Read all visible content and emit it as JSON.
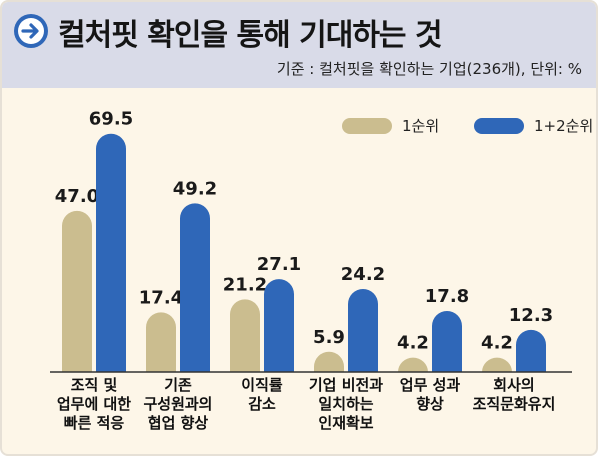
{
  "header": {
    "title": "컬처핏 확인을 통해 기대하는 것",
    "subtitle": "기준 : 컬처핏을 확인하는 기업(236개), 단위: %",
    "icon": "arrow-right-circle-icon"
  },
  "colors": {
    "series1": "#cbbd8f",
    "series2": "#2f67b8",
    "axis": "#333333"
  },
  "chart_data": {
    "type": "bar",
    "categories": [
      [
        "조직 및",
        "업무에 대한",
        "빠른 적응"
      ],
      [
        "기존",
        "구성원과의",
        "협업 향상"
      ],
      [
        "이직률",
        "감소"
      ],
      [
        "기업 비전과",
        "일치하는",
        "인재확보"
      ],
      [
        "업무 성과",
        "향상"
      ],
      [
        "회사의",
        "조직문화유지"
      ]
    ],
    "series": [
      {
        "name": "1순위",
        "values": [
          47.0,
          17.4,
          21.2,
          5.9,
          4.2,
          4.2
        ],
        "labels": [
          "47.0",
          "17.4",
          "21.2",
          "5.9",
          "4.2",
          "4.2"
        ]
      },
      {
        "name": "1+2순위",
        "values": [
          69.5,
          49.2,
          27.1,
          24.2,
          17.8,
          12.3
        ],
        "labels": [
          "69.5",
          "49.2",
          "27.1",
          "24.2",
          "17.8",
          "12.3"
        ]
      }
    ],
    "ylim": [
      0,
      70
    ],
    "grid": false,
    "legend": "top-right"
  }
}
